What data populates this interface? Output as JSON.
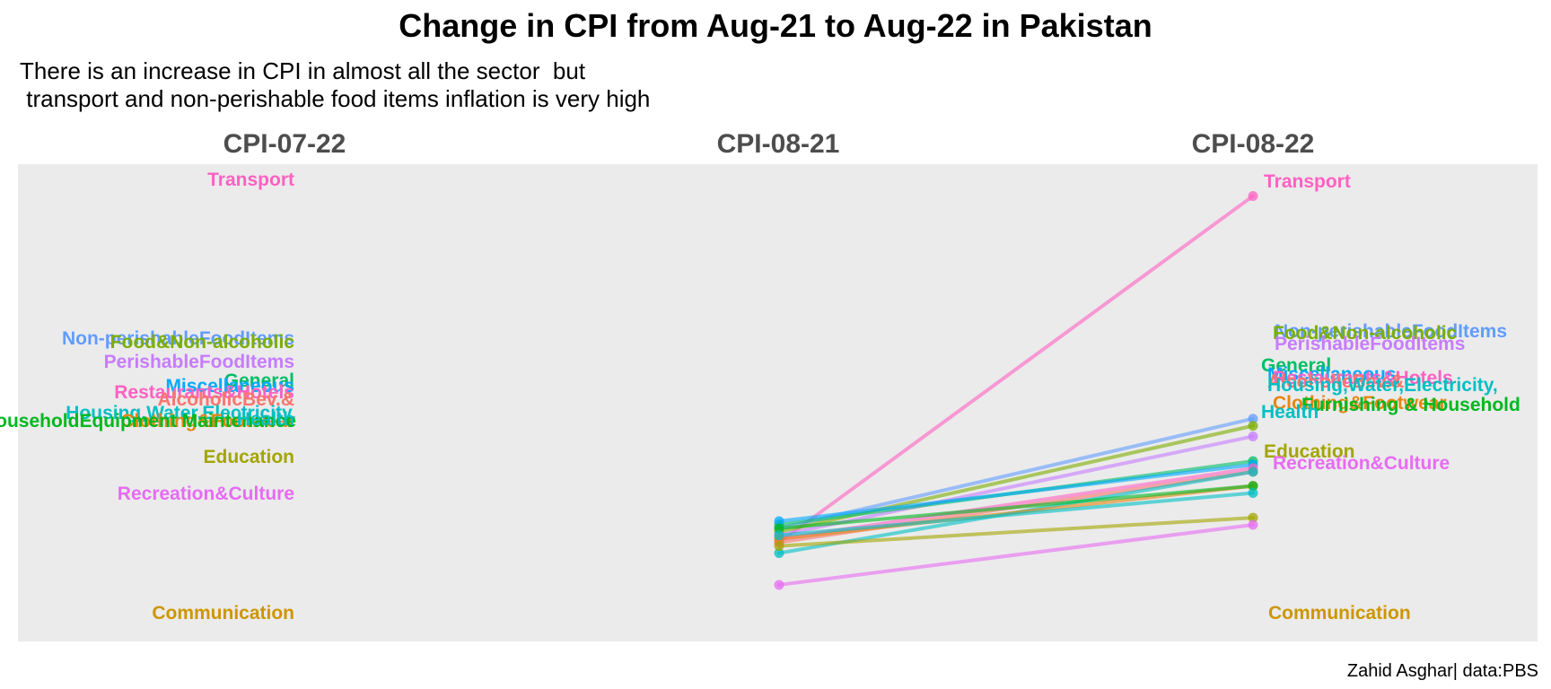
{
  "chart_data": {
    "type": "line",
    "title": "Change in CPI from Aug-21 to Aug-22 in Pakistan",
    "subtitle_lines": [
      "There is an increase in CPI in almost all the sector  but",
      " transport and non-perishable food items inflation is very high"
    ],
    "caption": "Zahid Asghar| data:PBS",
    "columns": [
      "CPI-07-22",
      "CPI-08-21",
      "CPI-08-22"
    ],
    "legend": "none",
    "grid": false,
    "series": [
      {
        "name": "Transport",
        "color": "#FF61C3",
        "values": [
          null,
          148,
          246
        ],
        "label_left": "Transport",
        "label_right": "Transport"
      },
      {
        "name": "Non-perishableFoodItems",
        "color": "#619CFF",
        "values": [
          null,
          152,
          183
        ],
        "label_left": "Non-perishableFoodItems",
        "label_right": "Non-perishableFoodItems"
      },
      {
        "name": "Food&Non-alcoholic",
        "color": "#7CAE00",
        "values": [
          null,
          151,
          181
        ],
        "label_left": "Food&Non-alcoholic",
        "label_right": "Food&Non-alcoholic"
      },
      {
        "name": "PerishableFoodItems",
        "color": "#C77CFF",
        "values": [
          null,
          150,
          178
        ],
        "label_left": "PerishableFoodItems",
        "label_right": "PerishableFoodItems"
      },
      {
        "name": "General",
        "color": "#00BE67",
        "values": [
          null,
          153,
          171
        ],
        "label_left": "General",
        "label_right": "General"
      },
      {
        "name": "Miscellaneous",
        "color": "#00A9FF",
        "values": [
          null,
          154,
          170
        ],
        "label_left": "Miscellaneous",
        "label_right": "Miscellaneous"
      },
      {
        "name": "Restaurants&Hotels",
        "color": "#FF61C3",
        "values": [
          null,
          149,
          169
        ],
        "label_left": "Restaurants&Hotels",
        "label_right": "Restaurants&Hotels"
      },
      {
        "name": "AlcoholicBev.&",
        "color": "#F8766D",
        "values": [
          null,
          148,
          168
        ],
        "label_left": "AlcoholicBev.&",
        "label_right": "AlcoholicBev.&"
      },
      {
        "name": "Housing,Water,Electricity,",
        "color": "#00BFC4",
        "values": [
          null,
          145,
          168
        ],
        "label_left": "Housing,Water,Electricity,",
        "label_right": "Housing,Water,Electricity,"
      },
      {
        "name": "Clothing&Footwear",
        "color": "#E68613",
        "values": [
          null,
          149,
          164
        ],
        "label_left": "Clothing&Footwear",
        "label_right": "Clothing&Footwear"
      },
      {
        "name": "Furnishing & Household",
        "color": "#00B81F",
        "values": [
          null,
          152,
          164
        ],
        "label_left": "Furnishing & HouseholdEquipment Maintenance",
        "label_right": "Furnishing & Household"
      },
      {
        "name": "Health",
        "color": "#00BFC4",
        "values": [
          null,
          150,
          162
        ],
        "label_left": "Health",
        "label_right": "Health"
      },
      {
        "name": "Education",
        "color": "#A3A500",
        "values": [
          null,
          147,
          155
        ],
        "label_left": "Education",
        "label_right": "Education"
      },
      {
        "name": "Recreation&Culture",
        "color": "#E76BF3",
        "values": [
          null,
          136,
          153
        ],
        "label_left": "Recreation&Culture",
        "label_right": "Recreation&Culture"
      },
      {
        "name": "Communication",
        "color": "#CD9600",
        "values": [
          null,
          null,
          null
        ],
        "label_left": "Communication",
        "label_right": "Communication"
      }
    ]
  }
}
